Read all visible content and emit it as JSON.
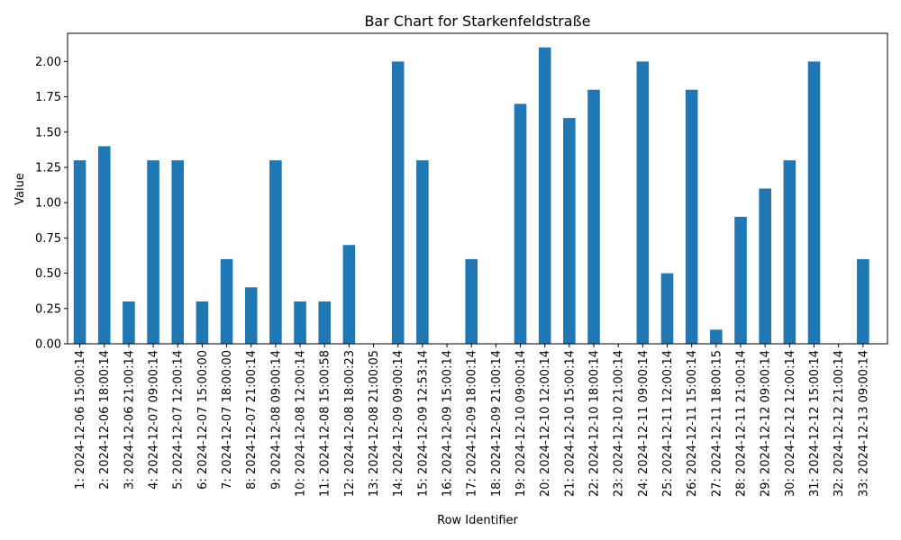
{
  "chart_data": {
    "type": "bar",
    "title": "Bar Chart for Starkenfeldstraße",
    "xlabel": "Row Identifier",
    "ylabel": "Value",
    "ylim": [
      0,
      2.2
    ],
    "yticks": [
      "0.00",
      "0.25",
      "0.50",
      "0.75",
      "1.00",
      "1.25",
      "1.50",
      "1.75",
      "2.00"
    ],
    "bar_color": "#1f77b4",
    "grid": false,
    "legend": "none",
    "categories": [
      "1: 2024-12-06 15:00:14",
      "2: 2024-12-06 18:00:14",
      "3: 2024-12-06 21:00:14",
      "4: 2024-12-07 09:00:14",
      "5: 2024-12-07 12:00:14",
      "6: 2024-12-07 15:00:00",
      "7: 2024-12-07 18:00:00",
      "8: 2024-12-07 21:00:14",
      "9: 2024-12-08 09:00:14",
      "10: 2024-12-08 12:00:14",
      "11: 2024-12-08 15:00:58",
      "12: 2024-12-08 18:00:23",
      "13: 2024-12-08 21:00:05",
      "14: 2024-12-09 09:00:14",
      "15: 2024-12-09 12:53:14",
      "16: 2024-12-09 15:00:14",
      "17: 2024-12-09 18:00:14",
      "18: 2024-12-09 21:00:14",
      "19: 2024-12-10 09:00:14",
      "20: 2024-12-10 12:00:14",
      "21: 2024-12-10 15:00:14",
      "22: 2024-12-10 18:00:14",
      "23: 2024-12-10 21:00:14",
      "24: 2024-12-11 09:00:14",
      "25: 2024-12-11 12:00:14",
      "26: 2024-12-11 15:00:14",
      "27: 2024-12-11 18:00:15",
      "28: 2024-12-11 21:00:14",
      "29: 2024-12-12 09:00:14",
      "30: 2024-12-12 12:00:14",
      "31: 2024-12-12 15:00:14",
      "32: 2024-12-12 21:00:14",
      "33: 2024-12-13 09:00:14"
    ],
    "values": [
      1.3,
      1.4,
      0.3,
      1.3,
      1.3,
      0.3,
      0.6,
      0.4,
      1.3,
      0.3,
      0.3,
      0.7,
      0.0,
      2.0,
      1.3,
      0.0,
      0.6,
      0.0,
      1.7,
      2.1,
      1.6,
      1.8,
      0.0,
      2.0,
      0.5,
      1.8,
      0.1,
      0.9,
      1.1,
      1.3,
      2.0,
      0.0,
      0.6
    ]
  }
}
